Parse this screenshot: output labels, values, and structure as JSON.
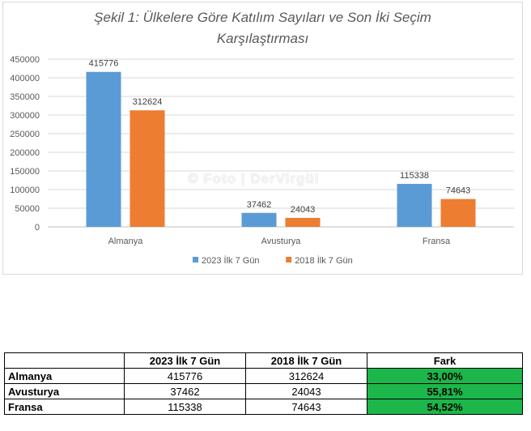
{
  "chart_data": {
    "type": "bar",
    "title_line1": "Şekil 1: Ülkelere Göre Katılım Sayıları ve Son İki Seçim",
    "title_line2": "Karşılaştırması",
    "categories": [
      "Almanya",
      "Avusturya",
      "Fransa"
    ],
    "series": [
      {
        "name": "2023 İlk 7 Gün",
        "values": [
          415776,
          37462,
          115338
        ],
        "color": "#5b9bd5"
      },
      {
        "name": "2018 İlk 7 Gün",
        "values": [
          312624,
          24043,
          74643
        ],
        "color": "#ed7d31"
      }
    ],
    "ylim": [
      0,
      450000
    ],
    "yticks": [
      "0",
      "50000",
      "100000",
      "150000",
      "200000",
      "250000",
      "300000",
      "350000",
      "400000",
      "450000"
    ],
    "grid": true,
    "legend_position": "bottom",
    "watermark": "© Foto | DerVirgül"
  },
  "table": {
    "headers": [
      "",
      "2023 İlk 7 Gün",
      "2018 İlk 7 Gün",
      "Fark"
    ],
    "rows": [
      {
        "label": "Almanya",
        "v2023": "415776",
        "v2018": "312624",
        "fark": "33,00%"
      },
      {
        "label": "Avusturya",
        "v2023": "37462",
        "v2018": "24043",
        "fark": "55,81%"
      },
      {
        "label": "Fransa",
        "v2023": "115338",
        "v2018": "74643",
        "fark": "54,52%"
      }
    ]
  }
}
